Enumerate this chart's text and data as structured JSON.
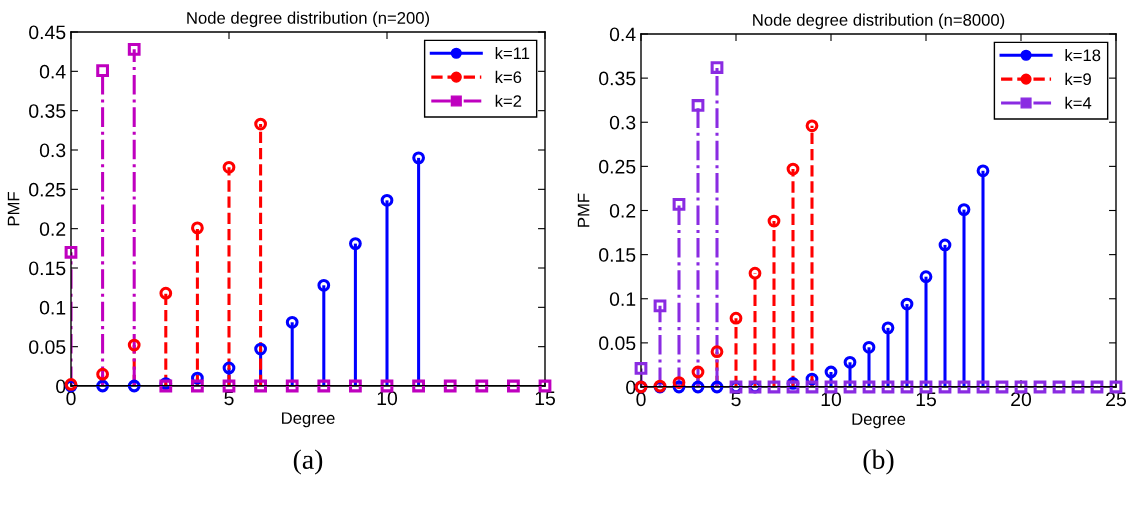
{
  "chart_data": [
    {
      "type": "lollipop",
      "title": "Node degree distribution (n=200)",
      "xlabel": "Degree",
      "ylabel": "PMF",
      "xlim": [
        0,
        15
      ],
      "xticks": [
        0,
        5,
        10,
        15
      ],
      "ylim": [
        0,
        0.45
      ],
      "yticks": [
        0,
        0.05,
        0.1,
        0.15,
        0.2,
        0.25,
        0.3,
        0.35,
        0.4,
        0.45
      ],
      "legend": "top right",
      "grid": false,
      "annotations": [
        "(a)"
      ],
      "series": [
        {
          "name": "k=11",
          "color": "#0000ff",
          "marker": "circle",
          "line_style": "solid",
          "x": [
            0,
            1,
            2,
            3,
            4,
            5,
            6,
            7,
            8,
            9,
            10,
            11
          ],
          "values": [
            0,
            0,
            0,
            0.003,
            0.01,
            0.023,
            0.047,
            0.081,
            0.128,
            0.181,
            0.236,
            0.29
          ]
        },
        {
          "name": "k=6",
          "color": "#ff0000",
          "marker": "circle",
          "line_style": "dashed",
          "x": [
            0,
            1,
            2,
            3,
            4,
            5,
            6
          ],
          "values": [
            0.002,
            0.015,
            0.052,
            0.118,
            0.201,
            0.278,
            0.333
          ]
        },
        {
          "name": "k=2",
          "color": "#bf00bf",
          "marker": "square",
          "line_style": "dashdot",
          "x": [
            0,
            1,
            2,
            3,
            4,
            5,
            6,
            7,
            8,
            9,
            10,
            11,
            12,
            13,
            14,
            15
          ],
          "values": [
            0.17,
            0.401,
            0.428,
            0,
            0,
            0,
            0,
            0,
            0,
            0,
            0,
            0,
            0,
            0,
            0,
            0
          ]
        }
      ]
    },
    {
      "type": "lollipop",
      "title": "Node degree distribution (n=8000)",
      "xlabel": "Degree",
      "ylabel": "PMF",
      "xlim": [
        0,
        25
      ],
      "xticks": [
        0,
        5,
        10,
        15,
        20,
        25
      ],
      "ylim": [
        0,
        0.4
      ],
      "yticks": [
        0,
        0.05,
        0.1,
        0.15,
        0.2,
        0.25,
        0.3,
        0.35,
        0.4
      ],
      "legend": "top right",
      "grid": false,
      "annotations": [
        "(b)"
      ],
      "series": [
        {
          "name": "k=18",
          "color": "#0000ff",
          "marker": "circle",
          "line_style": "solid",
          "x": [
            0,
            1,
            2,
            3,
            4,
            5,
            6,
            7,
            8,
            9,
            10,
            11,
            12,
            13,
            14,
            15,
            16,
            17,
            18
          ],
          "values": [
            0,
            0,
            0,
            0,
            0,
            0,
            0,
            null,
            0.004,
            0.009,
            0.017,
            0.028,
            0.045,
            0.067,
            0.094,
            0.125,
            0.161,
            0.201,
            0.245
          ]
        },
        {
          "name": "k=9",
          "color": "#ff0000",
          "marker": "circle",
          "line_style": "dashed",
          "x": [
            0,
            1,
            2,
            3,
            4,
            5,
            6,
            7,
            8,
            9
          ],
          "values": [
            0,
            0.001,
            0.005,
            0.017,
            0.04,
            0.078,
            0.129,
            0.188,
            0.247,
            0.296
          ]
        },
        {
          "name": "k=4",
          "color": "#8a2be2",
          "marker": "square",
          "line_style": "dashdot",
          "x": [
            0,
            1,
            2,
            3,
            4,
            5,
            6,
            7,
            8,
            9,
            10,
            11,
            12,
            13,
            14,
            15,
            16,
            17,
            18,
            19,
            20,
            21,
            22,
            23,
            24,
            25
          ],
          "values": [
            0.021,
            0.092,
            0.207,
            0.319,
            0.362,
            0,
            0,
            0,
            0,
            0,
            0,
            0,
            0,
            0,
            0,
            0,
            0,
            0,
            0,
            0,
            0,
            0,
            0,
            0,
            0,
            0
          ]
        }
      ]
    }
  ]
}
